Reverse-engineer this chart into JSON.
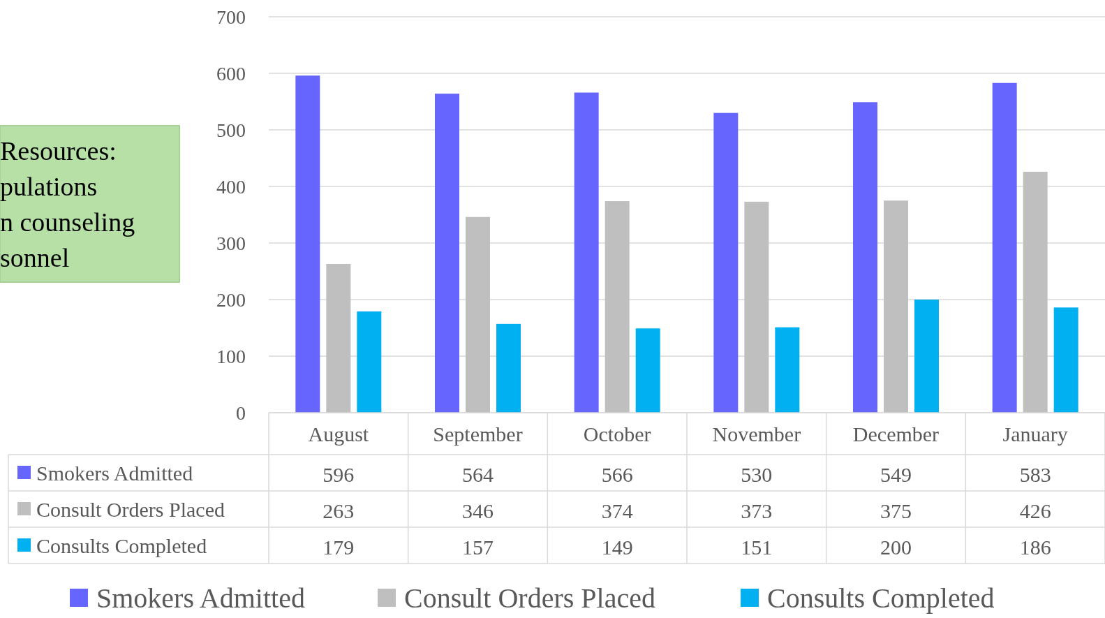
{
  "chart_data": {
    "type": "bar",
    "categories": [
      "August",
      "September",
      "October",
      "November",
      "December",
      "January"
    ],
    "series": [
      {
        "name": "Smokers Admitted",
        "color": "#6666ff",
        "values": [
          596,
          564,
          566,
          530,
          549,
          583
        ]
      },
      {
        "name": "Consult Orders Placed",
        "color": "#bfbfbf",
        "values": [
          263,
          346,
          374,
          373,
          375,
          426
        ]
      },
      {
        "name": "Consults Completed",
        "color": "#00b0f0",
        "values": [
          179,
          157,
          149,
          151,
          200,
          186
        ]
      }
    ],
    "ylim": [
      0,
      700
    ],
    "yticks": [
      0,
      100,
      200,
      300,
      400,
      500,
      600,
      700
    ],
    "grid": "y",
    "legend": "bottom",
    "data_labels": true,
    "annotations": [
      "Resources:\npulations\nn counseling\nsonnel"
    ]
  }
}
